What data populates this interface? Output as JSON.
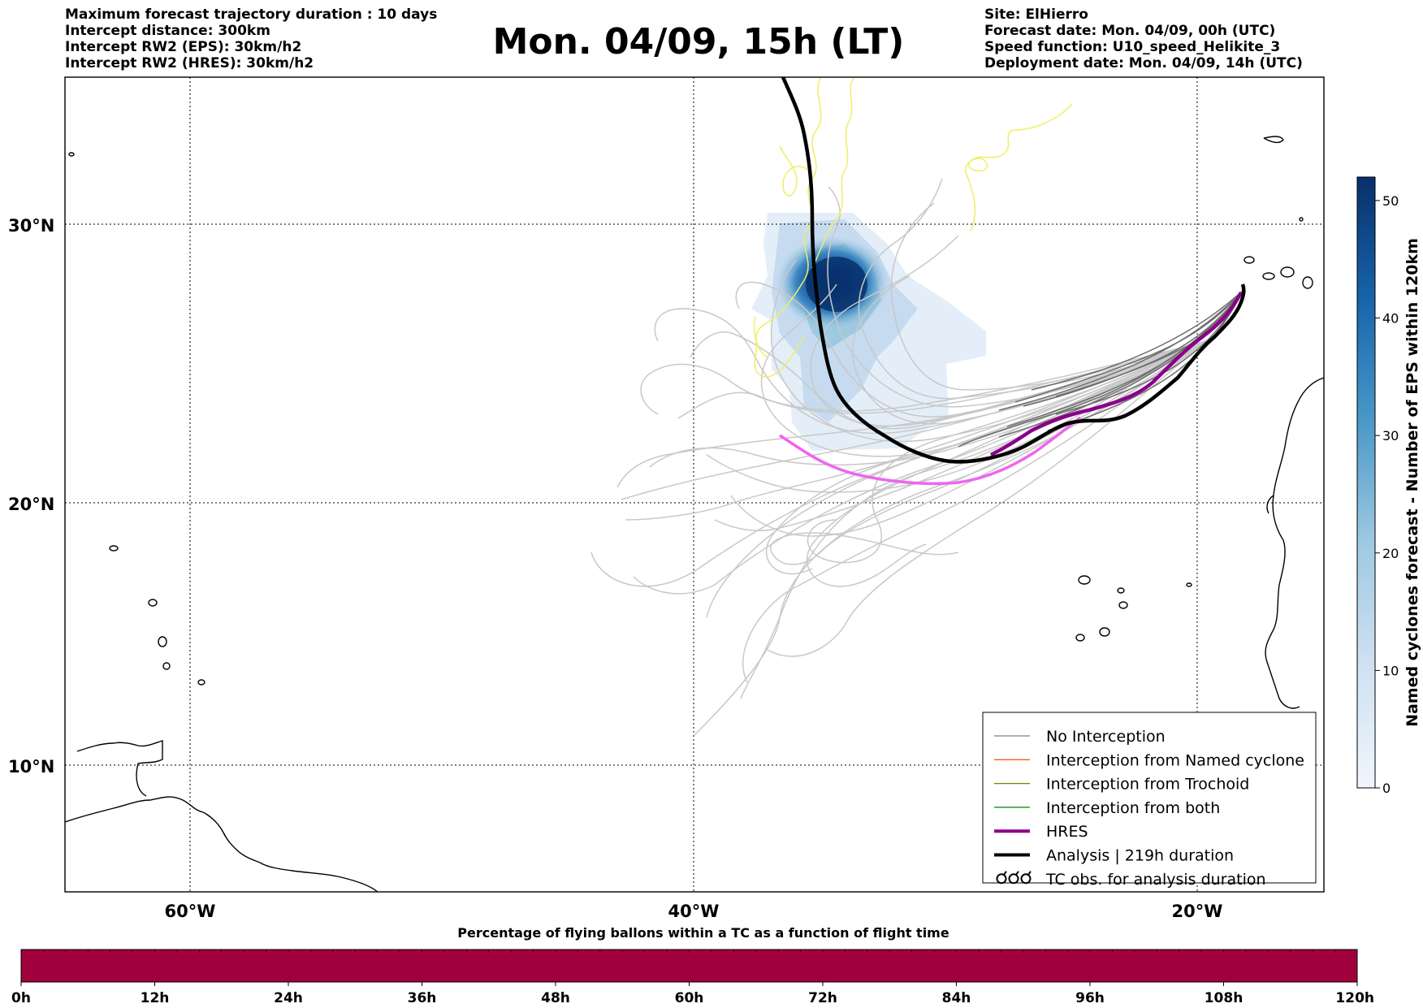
{
  "header": {
    "left_lines": [
      "Maximum forecast trajectory duration : 10 days",
      "Intercept distance: 300km",
      "Intercept RW2 (EPS):  30km/h2",
      "Intercept RW2 (HRES): 30km/h2"
    ],
    "right_lines": [
      "Site: ElHierro",
      "Forecast date: Mon. 04/09, 00h (UTC)",
      "Speed function: U10_speed_Helikite_3",
      "Deployment date: Mon. 04/09, 14h (UTC)"
    ],
    "title": "Mon. 04/09, 15h (LT)"
  },
  "map": {
    "lat_labels": [
      "30°N",
      "20°N",
      "10°N"
    ],
    "lon_labels": [
      "60°W",
      "40°W",
      "20°W"
    ],
    "colors": {
      "no_interception": "#808080",
      "named_cyclone": "#ff5a14",
      "trochoid": "#808000",
      "both": "#008000",
      "hres": "#8b008b",
      "analysis": "#000000",
      "hres_tail": "#ee66ee",
      "tc_obs": "#eeee66"
    }
  },
  "legend": {
    "items": [
      {
        "label": "No Interception",
        "style": "thin",
        "color": "#808080"
      },
      {
        "label": "Interception from Named cyclone",
        "style": "thin",
        "color": "#ff5a14"
      },
      {
        "label": "Interception from Trochoid",
        "style": "thin",
        "color": "#808000"
      },
      {
        "label": "Interception from both",
        "style": "thin",
        "color": "#008000"
      },
      {
        "label": "HRES",
        "style": "thick",
        "color": "#8b008b"
      },
      {
        "label": "Analysis | 219h duration",
        "style": "thick",
        "color": "#000000"
      },
      {
        "label": "TC obs. for analysis duration",
        "style": "symbol",
        "color": "#000000"
      }
    ]
  },
  "colorbar_right": {
    "label": "Named cyclones forecast - Number of EPS within 120km",
    "ticks": [
      "0",
      "10",
      "20",
      "30",
      "40",
      "50"
    ],
    "min": 0,
    "max": 52,
    "colors": [
      "#f0f6fc",
      "#cfe1f2",
      "#9ecae1",
      "#4a98c9",
      "#1764ab",
      "#08306b"
    ]
  },
  "colorbar_bottom": {
    "title": "Percentage of flying ballons within a TC as a function of flight time",
    "ticks": [
      "0h",
      "12h",
      "24h",
      "36h",
      "48h",
      "60h",
      "72h",
      "84h",
      "96h",
      "108h",
      "120h"
    ],
    "fill_color": "#a0003c"
  }
}
